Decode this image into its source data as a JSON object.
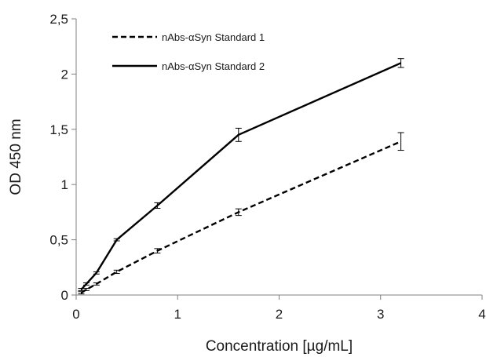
{
  "chart_data": {
    "type": "line",
    "xlabel": "Concentration [µg/mL]",
    "ylabel": "OD 450 nm",
    "xlim": [
      0,
      4
    ],
    "ylim": [
      0,
      2.5
    ],
    "x_ticks": [
      0,
      1,
      2,
      3,
      4
    ],
    "x_tick_labels": [
      "0",
      "1",
      "2",
      "3",
      "4"
    ],
    "y_ticks": [
      0,
      0.5,
      1,
      1.5,
      2,
      2.5
    ],
    "y_tick_labels": [
      "0",
      "0,5",
      "1",
      "1,5",
      "2",
      "2,5"
    ],
    "grid": false,
    "legend_position": "top-left",
    "series": [
      {
        "name": "nAbs-αSyn Standard 1",
        "line_style": "dashed",
        "color": "#000000",
        "x": [
          0.05,
          0.1,
          0.2,
          0.4,
          0.8,
          1.6,
          3.2
        ],
        "values": [
          0.02,
          0.05,
          0.1,
          0.21,
          0.4,
          0.75,
          1.39
        ],
        "errors": [
          0.01,
          0.01,
          0.01,
          0.015,
          0.02,
          0.03,
          0.08
        ]
      },
      {
        "name": "nAbs-αSyn Standard 2",
        "line_style": "solid",
        "color": "#000000",
        "x": [
          0.05,
          0.1,
          0.2,
          0.4,
          0.8,
          1.6,
          3.2
        ],
        "values": [
          0.05,
          0.1,
          0.2,
          0.5,
          0.81,
          1.45,
          2.1
        ],
        "errors": [
          0.01,
          0.01,
          0.01,
          0.01,
          0.025,
          0.06,
          0.04
        ]
      }
    ]
  }
}
